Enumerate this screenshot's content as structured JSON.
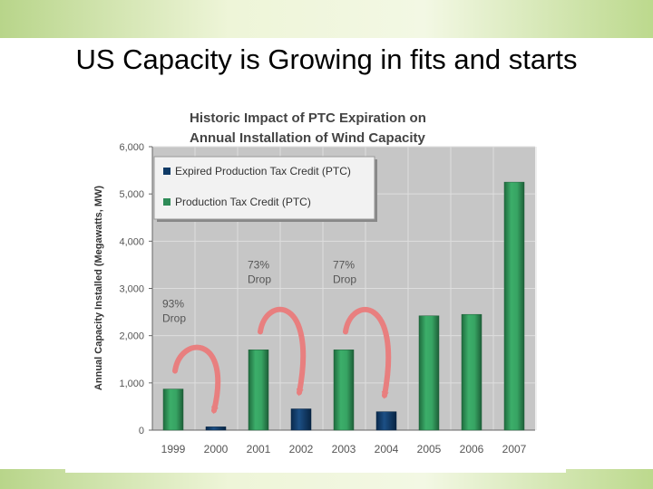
{
  "slide": {
    "title": "US Capacity is Growing in fits and starts"
  },
  "colors": {
    "ptc": "#2e8b57",
    "expired": "#0f3a66",
    "plot_bg": "#c6c6c6",
    "arrow": "#e87f7f"
  },
  "chart_data": {
    "type": "bar",
    "title": "Historic Impact of PTC Expiration on Annual Installation of Wind Capacity",
    "title_lines": [
      "Historic Impact of PTC Expiration on",
      "Annual Installation of Wind Capacity"
    ],
    "ylabel": "Annual Capacity Installed (Megawatts, MW)",
    "xlabel": "",
    "ylim": [
      0,
      6000
    ],
    "yticks": [
      0,
      1000,
      2000,
      3000,
      4000,
      5000,
      6000
    ],
    "ytick_labels": [
      "0",
      "1,000",
      "2,000",
      "3,000",
      "4,000",
      "5,000",
      "6,000"
    ],
    "categories": [
      "1999",
      "2000",
      "2001",
      "2002",
      "2003",
      "2004",
      "2005",
      "2006",
      "2007"
    ],
    "values": [
      870,
      70,
      1700,
      450,
      1700,
      390,
      2420,
      2450,
      5250
    ],
    "series_of_bar": [
      "ptc",
      "expired",
      "ptc",
      "expired",
      "ptc",
      "expired",
      "ptc",
      "ptc",
      "ptc"
    ],
    "legend": [
      {
        "key": "expired",
        "label": "Expired Production Tax Credit (PTC)"
      },
      {
        "key": "ptc",
        "label": "Production Tax Credit (PTC)"
      }
    ],
    "legend_position": "top-left",
    "annotations": [
      {
        "lines": [
          "93%",
          "Drop"
        ],
        "from": "1999",
        "to": "2000"
      },
      {
        "lines": [
          "73%",
          "Drop"
        ],
        "from": "2001",
        "to": "2002"
      },
      {
        "lines": [
          "77%",
          "Drop"
        ],
        "from": "2003",
        "to": "2004"
      }
    ]
  }
}
